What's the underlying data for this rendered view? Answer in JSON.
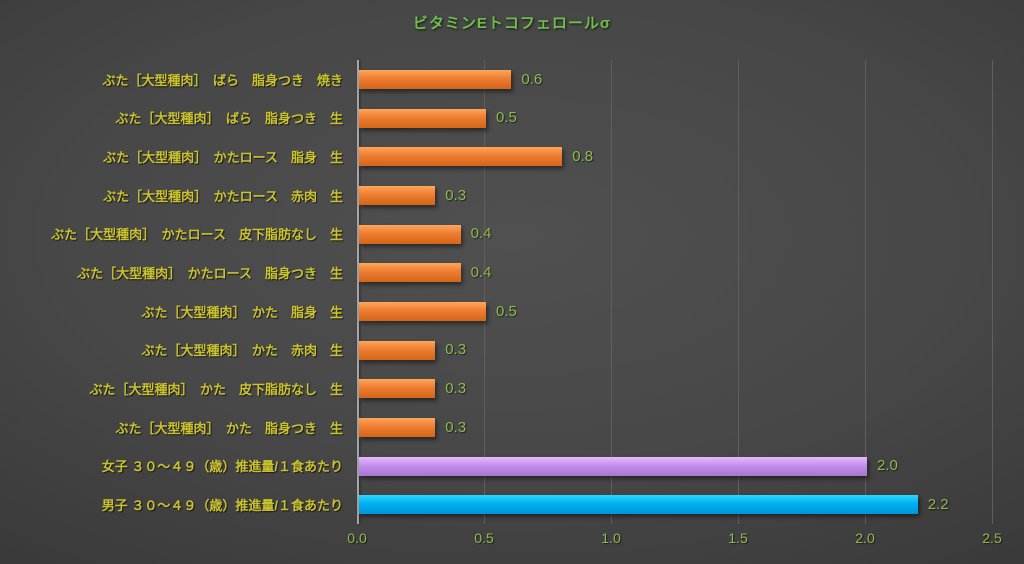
{
  "chart_data": {
    "type": "bar",
    "orientation": "horizontal",
    "title": "ビタミンEトコフェロールσ",
    "categories": [
      "ぶた［大型種肉］　ばら　脂身つき　焼き",
      "ぶた［大型種肉］　ばら　脂身つき　生",
      "ぶた［大型種肉］　かたロース　脂身　生",
      "ぶた［大型種肉］　かたロース　赤肉　生",
      "ぶた［大型種肉］　かたロース　皮下脂肪なし　生",
      "ぶた［大型種肉］　かたロース　脂身つき　生",
      "ぶた［大型種肉］　かた　脂身　生",
      "ぶた［大型種肉］　かた　赤肉　生",
      "ぶた［大型種肉］　かた　皮下脂肪なし　生",
      "ぶた［大型種肉］　かた　脂身つき　生",
      "女子 ３０～４９（歳）推進量/１食あたり",
      "男子 ３０～４９（歳）推進量/１食あたり"
    ],
    "values": [
      0.6,
      0.5,
      0.8,
      0.3,
      0.4,
      0.4,
      0.5,
      0.3,
      0.3,
      0.3,
      2.0,
      2.2
    ],
    "value_labels": [
      "0.6",
      "0.5",
      "0.8",
      "0.3",
      "0.4",
      "0.4",
      "0.5",
      "0.3",
      "0.3",
      "0.3",
      "2.0",
      "2.2"
    ],
    "bar_colors": [
      "#ED7D31",
      "#ED7D31",
      "#ED7D31",
      "#ED7D31",
      "#ED7D31",
      "#ED7D31",
      "#ED7D31",
      "#ED7D31",
      "#ED7D31",
      "#ED7D31",
      "#C18FEA",
      "#00B0F0"
    ],
    "xlim": [
      0,
      2.5
    ],
    "x_ticks": [
      "0.0",
      "0.5",
      "1.0",
      "1.5",
      "2.0",
      "2.5"
    ],
    "grid": true,
    "legend": "none",
    "colors": {
      "title": "#70BF4B",
      "category_label": "#CBC32E",
      "value_label": "#8FBA4C",
      "tick_label": "#8FBA4C",
      "gridline": "#5F5F5F",
      "axis_line": "#A6A6A6",
      "background_center": "#4E4E4E",
      "background_edge": "#262626"
    }
  }
}
